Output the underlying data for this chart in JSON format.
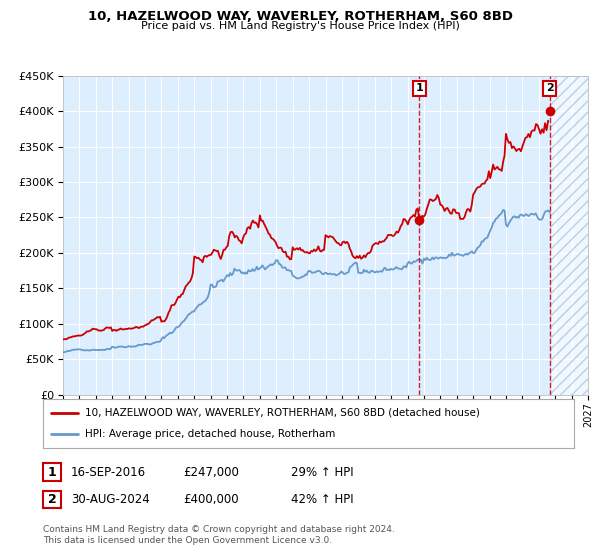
{
  "title": "10, HAZELWOOD WAY, WAVERLEY, ROTHERHAM, S60 8BD",
  "subtitle": "Price paid vs. HM Land Registry's House Price Index (HPI)",
  "red_label": "10, HAZELWOOD WAY, WAVERLEY, ROTHERHAM, S60 8BD (detached house)",
  "blue_label": "HPI: Average price, detached house, Rotherham",
  "annotation1_date": "16-SEP-2016",
  "annotation1_price": "£247,000",
  "annotation1_hpi": "29% ↑ HPI",
  "annotation2_date": "30-AUG-2024",
  "annotation2_price": "£400,000",
  "annotation2_hpi": "42% ↑ HPI",
  "footer": "Contains HM Land Registry data © Crown copyright and database right 2024.\nThis data is licensed under the Open Government Licence v3.0.",
  "red_color": "#cc0000",
  "blue_color": "#6699cc",
  "bg_color": "#ddeeff",
  "hatch_color": "#aabbdd",
  "grid_color": "#ffffff",
  "sale1_year": 2016.71,
  "sale1_value": 247000,
  "sale2_year": 2024.66,
  "sale2_value": 400000,
  "xmin": 1995,
  "xmax": 2027,
  "ymin": 0,
  "ymax": 450000
}
